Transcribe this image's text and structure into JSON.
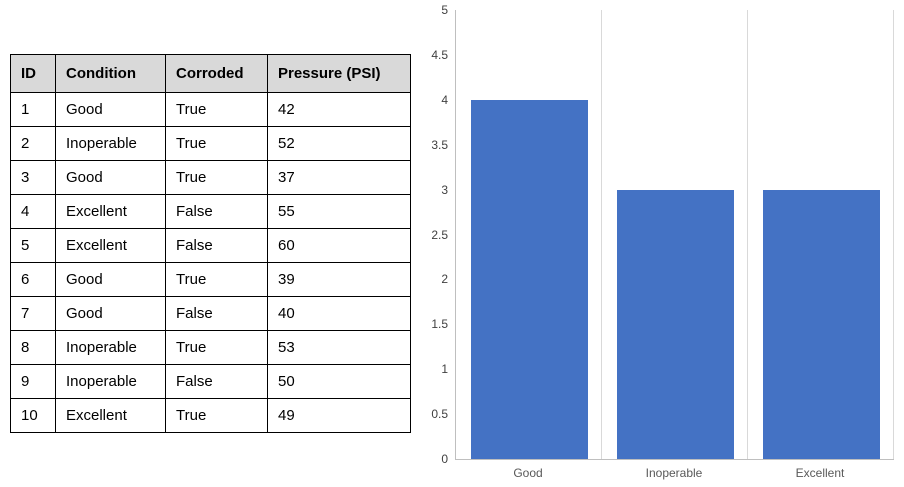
{
  "table": {
    "headers": [
      "ID",
      "Condition",
      "Corroded",
      "Pressure (PSI)"
    ],
    "rows": [
      [
        "1",
        "Good",
        "True",
        "42"
      ],
      [
        "2",
        "Inoperable",
        "True",
        "52"
      ],
      [
        "3",
        "Good",
        "True",
        "37"
      ],
      [
        "4",
        "Excellent",
        "False",
        "55"
      ],
      [
        "5",
        "Excellent",
        "False",
        "60"
      ],
      [
        "6",
        "Good",
        "True",
        "39"
      ],
      [
        "7",
        "Good",
        "False",
        "40"
      ],
      [
        "8",
        "Inoperable",
        "True",
        "53"
      ],
      [
        "9",
        "Inoperable",
        "False",
        "50"
      ],
      [
        "10",
        "Excellent",
        "True",
        "49"
      ]
    ]
  },
  "chart_data": {
    "type": "bar",
    "categories": [
      "Good",
      "Inoperable",
      "Excellent"
    ],
    "values": [
      4,
      3,
      3
    ],
    "title": "",
    "xlabel": "",
    "ylabel": "",
    "ylim": [
      0,
      5
    ],
    "yticks": [
      "0",
      "0.5",
      "1",
      "1.5",
      "2",
      "2.5",
      "3",
      "3.5",
      "4",
      "4.5",
      "5"
    ],
    "grid": "vertical-only",
    "legend": "none"
  },
  "colors": {
    "bar": "#4472c4",
    "table_header_bg": "#d9d9d9",
    "table_border": "#000000",
    "axis_line": "#bfbfbf",
    "gridline": "#d9d9d9",
    "tick_text": "#404040",
    "category_text": "#595959"
  }
}
